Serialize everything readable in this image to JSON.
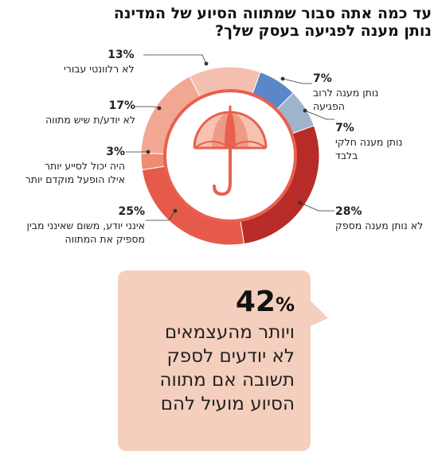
{
  "title": {
    "line1": "עד כמה אתה סבור שמתווה הסיוע של המדינה",
    "line2": "נותן מענה לפגיעה בעסק שלך?"
  },
  "chart_data": {
    "type": "pie",
    "title": "עד כמה אתה סבור שמתווה הסיוע של המדינה נותן מענה לפגיעה בעסק שלך?",
    "slices": [
      {
        "label": "לא רלוונטי עבורי",
        "value": 13,
        "value_label": "13%",
        "color": "#f5bfb0"
      },
      {
        "label": "נותן מענה לרוב הפגיעה",
        "value": 7,
        "value_label": "7%",
        "color": "#5b86c8"
      },
      {
        "label": "נותן מענה חלקי בלבד",
        "value": 7,
        "value_label": "7%",
        "color": "#9fb4cc"
      },
      {
        "label": "לא נותן מענה מספק",
        "value": 28,
        "value_label": "28%",
        "color": "#b72b28"
      },
      {
        "label": "אינני יודע, משום שאינני מבין מספיק את המתווה",
        "value": 25,
        "value_label": "25%",
        "color": "#e65a4c"
      },
      {
        "label": "היה יכול לסייע יותר אילו הופעל מוקדם יותר",
        "value": 3,
        "value_label": "3%",
        "color": "#ef8c74"
      },
      {
        "label": "לא יודע/ת שיש מתווה",
        "value": 17,
        "value_label": "17%",
        "color": "#f2a793"
      }
    ]
  },
  "labels": {
    "s0_pct": "13%",
    "s0_l1": "לא רלוונטי עבורי",
    "s1_pct": "7%",
    "s1_l1": "נותן מענה לרוב",
    "s1_l2": "הפגיעה",
    "s2_pct": "7%",
    "s2_l1": "נותן מענה חלקי",
    "s2_l2": "בלבד",
    "s3_pct": "28%",
    "s3_l1": "לא נותן מענה מספק",
    "s4_pct": "25%",
    "s4_l1": "אינני יודע, משום שאינני מבין",
    "s4_l2": "מספיק את המתווה",
    "s5_pct": "3%",
    "s5_l1": "היה יכול לסייע יותר",
    "s5_l2": "אילו הופעל מוקדם יותר",
    "s6_pct": "17%",
    "s6_l1": "לא יודע/ת שיש מתווה"
  },
  "callout": {
    "number": "42",
    "symbol": "%",
    "line1": "ויותר מהעצמאים",
    "line2": "לא יודעים לספק",
    "line3": "תשובה אם מתווה",
    "line4": "הסיוע מועיל להם",
    "bg_color": "#f5cfbd"
  },
  "umbrella_icon": "umbrella-icon"
}
